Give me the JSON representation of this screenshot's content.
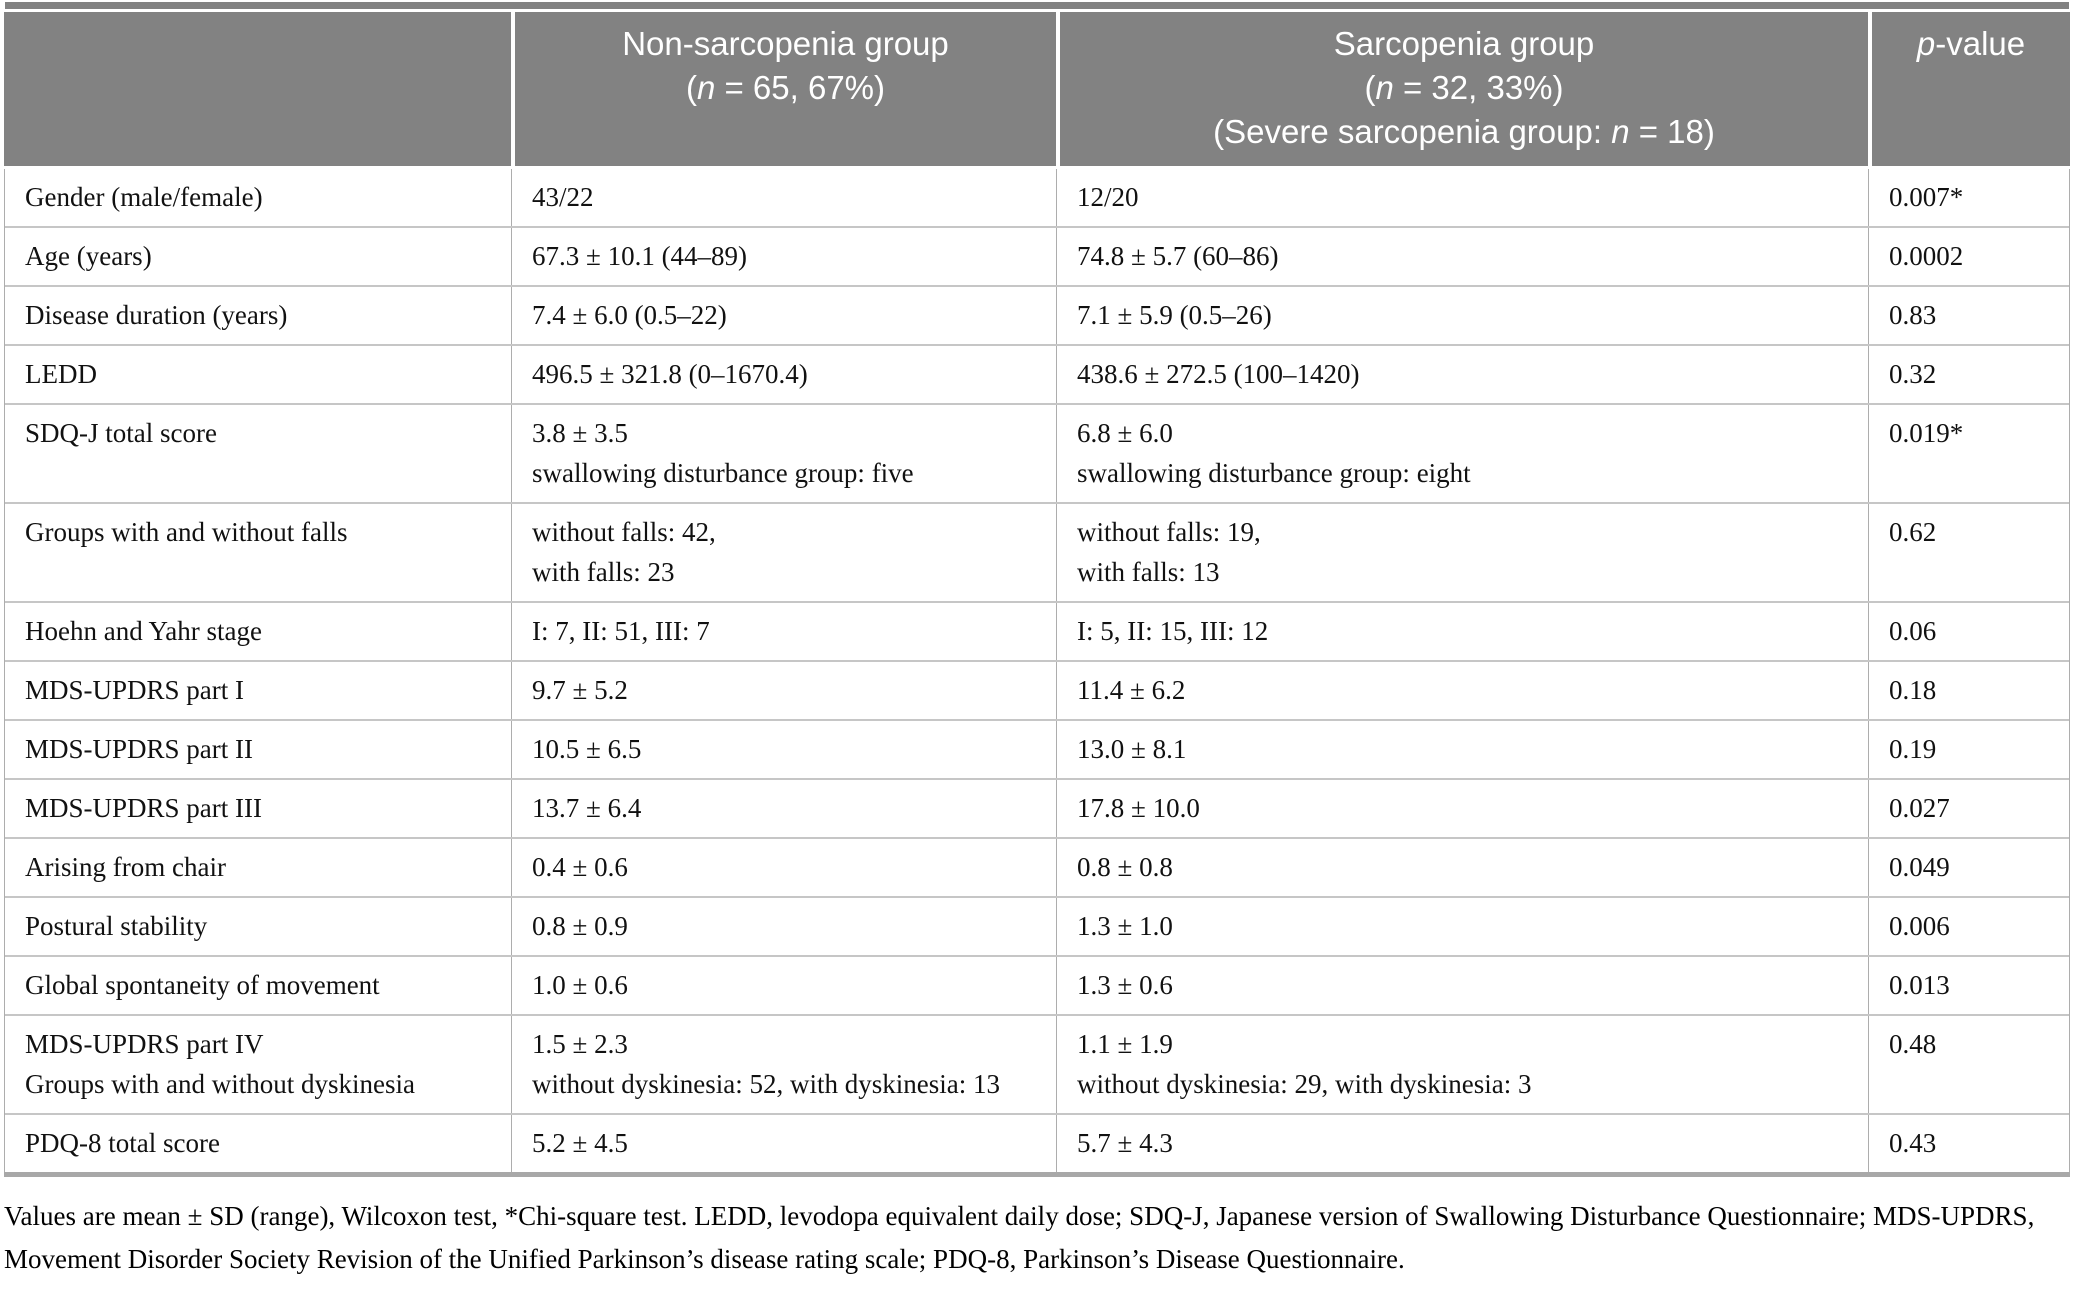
{
  "colors": {
    "header_bg": "#828282",
    "header_text": "#ffffff",
    "body_text": "#111111",
    "border": "#adadad",
    "row_line": "#c6c6c6",
    "bottom_rule": "#a8a8a8"
  },
  "header": {
    "columns": [
      {
        "id": "characteristic",
        "lines": []
      },
      {
        "id": "non-sarcopenia-group",
        "lines": [
          "Non-sarcopenia group",
          "(n = 65, 67%)"
        ]
      },
      {
        "id": "sarcopenia-group",
        "lines": [
          "Sarcopenia group",
          "(n = 32, 33%)",
          "(Severe sarcopenia group: n = 18)"
        ]
      },
      {
        "id": "p-value",
        "lines": [
          "p-value"
        ]
      }
    ]
  },
  "table": {
    "rows": [
      {
        "label": [
          "Gender (male/female)"
        ],
        "non_sarcopenia": [
          "43/22"
        ],
        "sarcopenia": [
          "12/20"
        ],
        "p_value": "0.007*"
      },
      {
        "label": [
          "Age (years)"
        ],
        "non_sarcopenia": [
          "67.3 ± 10.1 (44–89)"
        ],
        "sarcopenia": [
          "74.8 ± 5.7 (60–86)"
        ],
        "p_value": "0.0002"
      },
      {
        "label": [
          "Disease duration (years)"
        ],
        "non_sarcopenia": [
          "7.4 ± 6.0 (0.5–22)"
        ],
        "sarcopenia": [
          "7.1 ± 5.9 (0.5–26)"
        ],
        "p_value": "0.83"
      },
      {
        "label": [
          "LEDD"
        ],
        "non_sarcopenia": [
          "496.5 ± 321.8 (0–1670.4)"
        ],
        "sarcopenia": [
          "438.6 ± 272.5 (100–1420)"
        ],
        "p_value": "0.32"
      },
      {
        "label": [
          "SDQ-J total score"
        ],
        "non_sarcopenia": [
          "3.8 ± 3.5",
          "swallowing disturbance group: five"
        ],
        "sarcopenia": [
          "6.8 ± 6.0",
          "swallowing disturbance group: eight"
        ],
        "p_value": "0.019*"
      },
      {
        "label": [
          "Groups with and without falls"
        ],
        "non_sarcopenia": [
          "without falls: 42,",
          "with falls: 23"
        ],
        "sarcopenia": [
          "without falls: 19,",
          "with falls: 13"
        ],
        "p_value": "0.62"
      },
      {
        "label": [
          "Hoehn and Yahr stage"
        ],
        "non_sarcopenia": [
          "I: 7, II: 51, III: 7"
        ],
        "sarcopenia": [
          "I: 5, II: 15, III: 12"
        ],
        "p_value": "0.06"
      },
      {
        "label": [
          "MDS-UPDRS part I"
        ],
        "non_sarcopenia": [
          "9.7 ± 5.2"
        ],
        "sarcopenia": [
          "11.4 ± 6.2"
        ],
        "p_value": "0.18"
      },
      {
        "label": [
          "MDS-UPDRS part II"
        ],
        "non_sarcopenia": [
          "10.5 ± 6.5"
        ],
        "sarcopenia": [
          "13.0 ± 8.1"
        ],
        "p_value": "0.19"
      },
      {
        "label": [
          "MDS-UPDRS part III"
        ],
        "non_sarcopenia": [
          "13.7 ± 6.4"
        ],
        "sarcopenia": [
          "17.8 ± 10.0"
        ],
        "p_value": "0.027"
      },
      {
        "label": [
          "Arising from chair"
        ],
        "non_sarcopenia": [
          "0.4 ± 0.6"
        ],
        "sarcopenia": [
          "0.8 ± 0.8"
        ],
        "p_value": "0.049"
      },
      {
        "label": [
          "Postural stability"
        ],
        "non_sarcopenia": [
          "0.8 ± 0.9"
        ],
        "sarcopenia": [
          "1.3 ± 1.0"
        ],
        "p_value": "0.006"
      },
      {
        "label": [
          "Global spontaneity of movement"
        ],
        "non_sarcopenia": [
          "1.0 ± 0.6"
        ],
        "sarcopenia": [
          "1.3 ± 0.6"
        ],
        "p_value": "0.013"
      },
      {
        "label": [
          "MDS-UPDRS part IV",
          "Groups with and without dyskinesia"
        ],
        "non_sarcopenia": [
          "1.5 ± 2.3",
          "without dyskinesia: 52, with dyskinesia: 13"
        ],
        "sarcopenia": [
          "1.1 ± 1.9",
          "without dyskinesia: 29, with dyskinesia: 3"
        ],
        "p_value": "0.48"
      },
      {
        "label": [
          "PDQ-8 total score"
        ],
        "non_sarcopenia": [
          "5.2 ± 4.5"
        ],
        "sarcopenia": [
          "5.7 ± 4.3"
        ],
        "p_value": "0.43"
      }
    ]
  },
  "footnote": "Values are mean ± SD (range), Wilcoxon test, *Chi-square test. LEDD, levodopa equivalent daily dose; SDQ-J, Japanese version of Swallowing Disturbance Questionnaire; MDS-UPDRS, Movement Disorder Society Revision of the Unified Parkinson’s disease rating scale; PDQ-8, Parkinson’s Disease Questionnaire."
}
